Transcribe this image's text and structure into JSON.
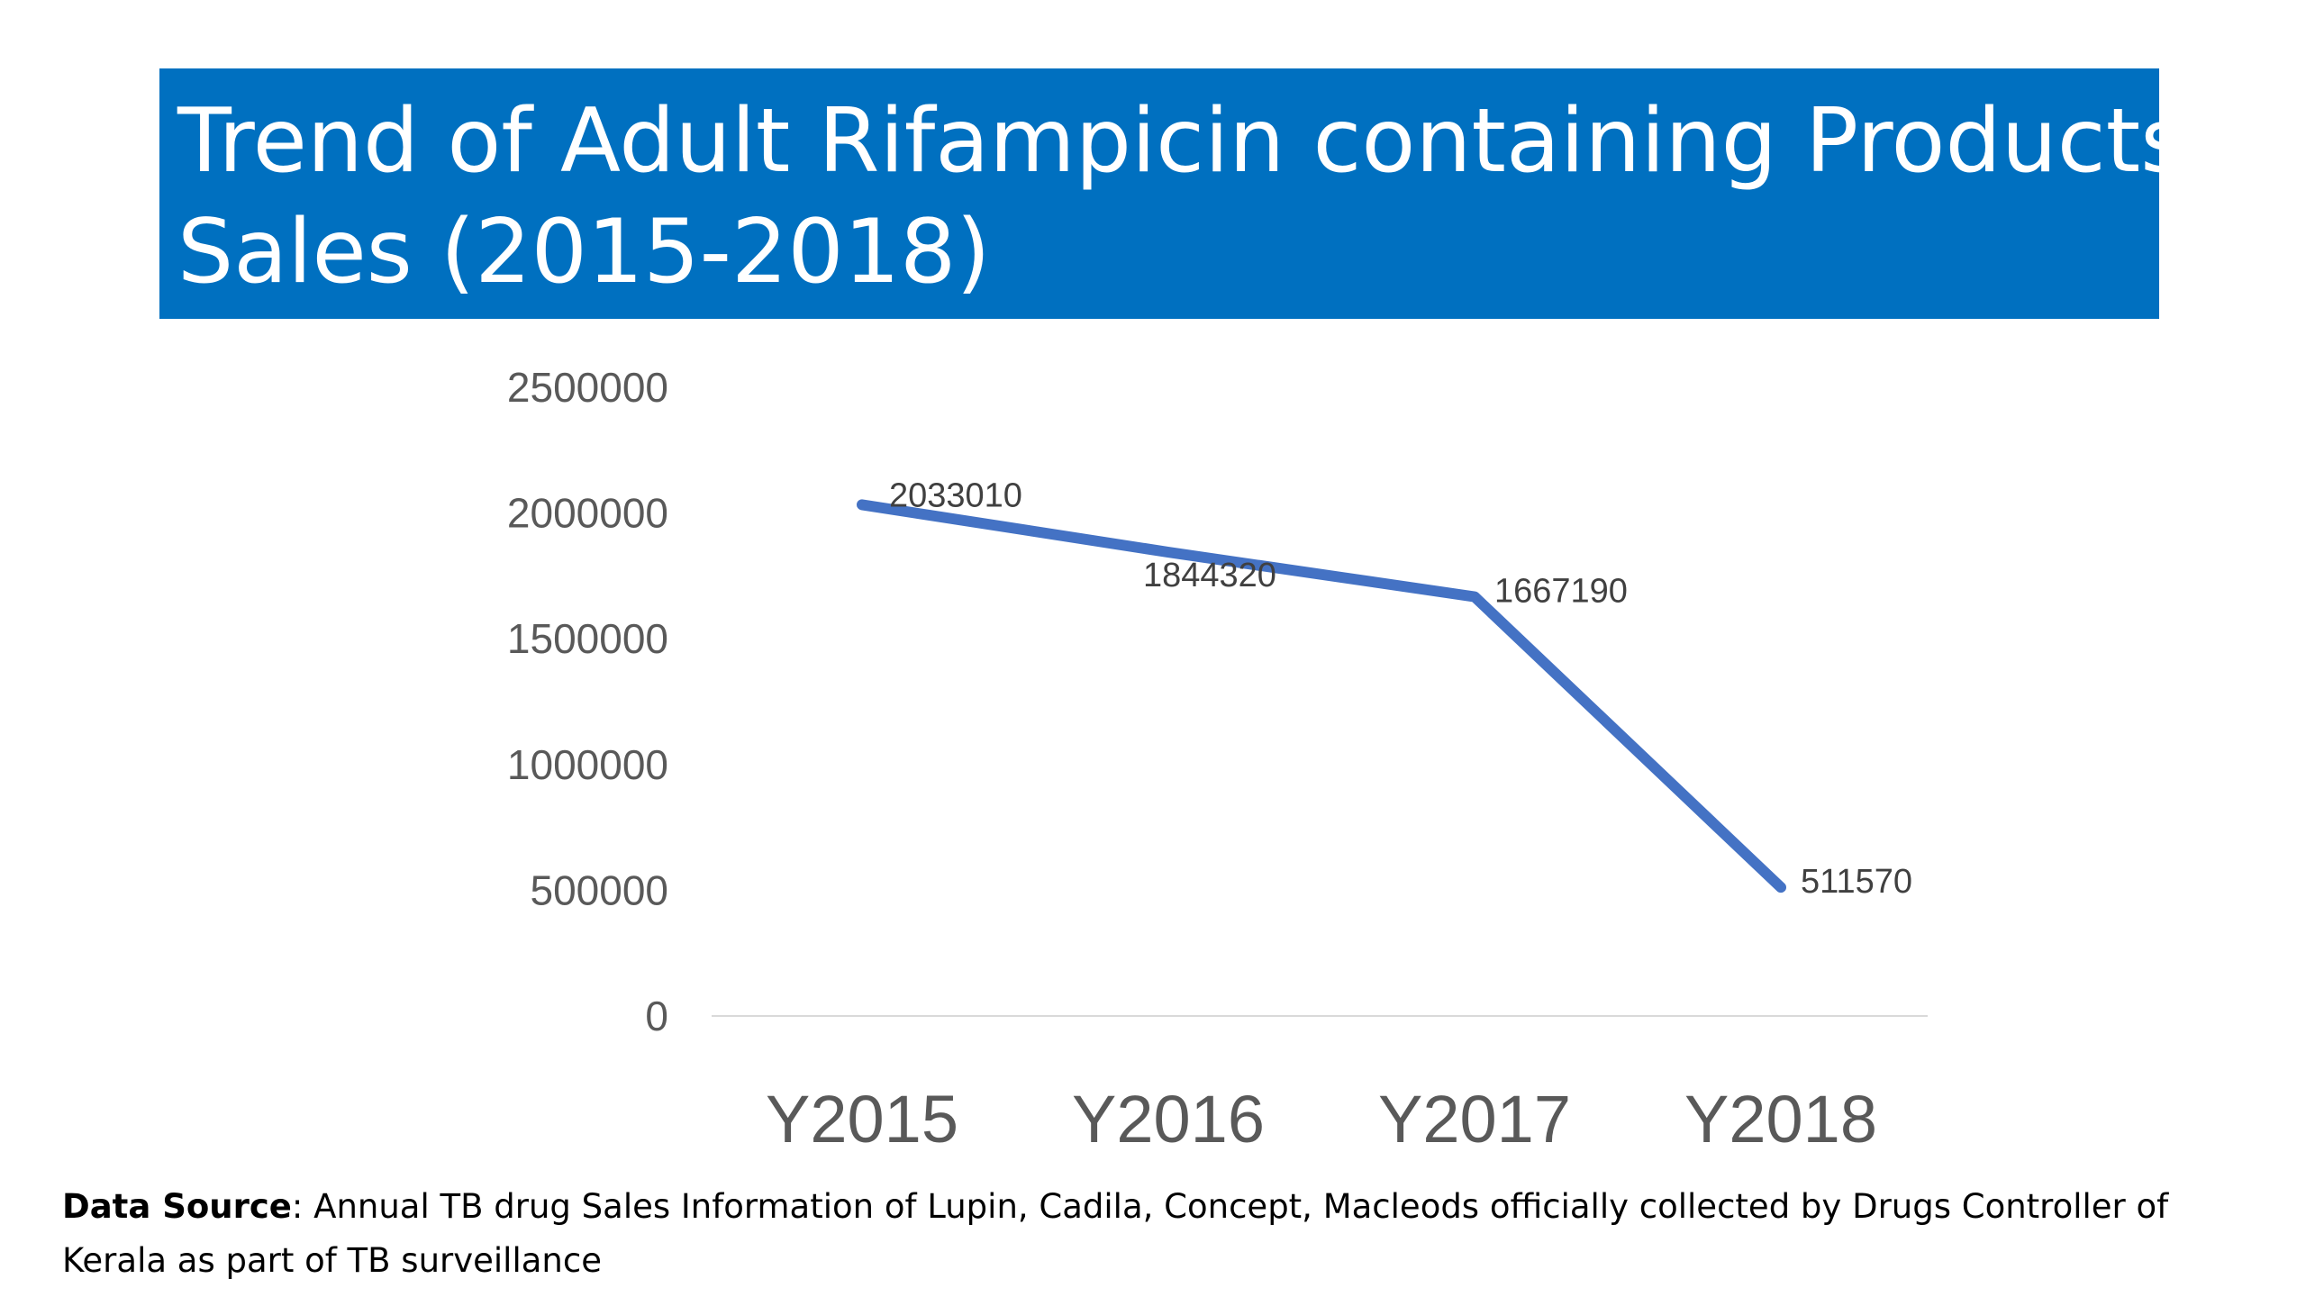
{
  "title": {
    "line1": "Trend of Adult Rifampicin containing Products",
    "line2": "Sales (2015-2018)"
  },
  "colors": {
    "banner": "#0070c0",
    "title_text": "#ffffff",
    "series_line": "#4472c4",
    "axis_text": "#595959",
    "gridline": "#d9d9d9"
  },
  "chart_data": {
    "type": "line",
    "categories": [
      "Y2015",
      "Y2016",
      "Y2017",
      "Y2018"
    ],
    "series": [
      {
        "values": [
          2033010,
          1844320,
          1667190,
          511570
        ]
      }
    ],
    "data_labels": [
      "2033010",
      "1844320",
      "1667190",
      "511570"
    ],
    "y_ticks": [
      "0",
      "500000",
      "1000000",
      "1500000",
      "2000000",
      "2500000"
    ],
    "ylim": [
      0,
      2500000
    ],
    "grid": false,
    "legend": "none"
  },
  "source": {
    "label": "Data Source",
    "separator": ":",
    "text": " Annual TB drug Sales Information of Lupin, Cadila, Concept, Macleods officially collected by Drugs Controller of Kerala as part of TB surveillance"
  }
}
